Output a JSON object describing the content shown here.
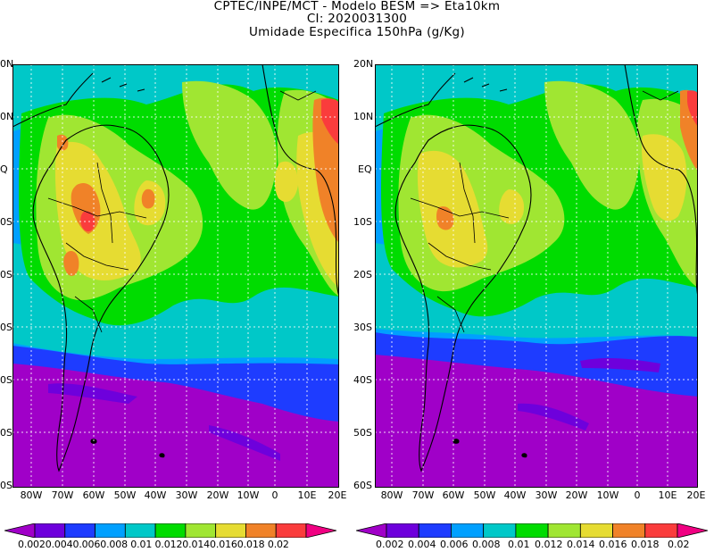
{
  "title": {
    "line1": "CPTEC/INPE/MCT -  Modelo BESM => Eta10km",
    "line2": "CI: 2020031300",
    "line3": "Umidade Especifica 150hPa (g/Kg)"
  },
  "axes": {
    "lat_labels": [
      "20N",
      "10N",
      "EQ",
      "10S",
      "20S",
      "30S",
      "40S",
      "50S",
      "60S"
    ],
    "left_lat_labels": [
      "0N",
      "0N",
      "Q",
      "0S",
      "0S",
      "0S",
      "0S",
      "0S",
      "0S"
    ],
    "lon_labels": [
      "80W",
      "70W",
      "60W",
      "50W",
      "40W",
      "30W",
      "20W",
      "10W",
      "0",
      "10E",
      "20E"
    ]
  },
  "colorbar": {
    "colors": [
      "#a000c8",
      "#6e00dc",
      "#1e3cff",
      "#00a0ff",
      "#00c8c8",
      "#00dc00",
      "#a0e632",
      "#e6dc32",
      "#f08228",
      "#fa3c3c",
      "#f00082"
    ],
    "left_labels": "0.0020.0040.0060.008 0.01 0.0120.0140.0160.018 0.02",
    "right_labels": [
      "0.002",
      "0.004",
      "0.006",
      "0.008",
      "0.01",
      "0.012",
      "0.014",
      "0.016",
      "0.018",
      "0.02"
    ]
  }
}
